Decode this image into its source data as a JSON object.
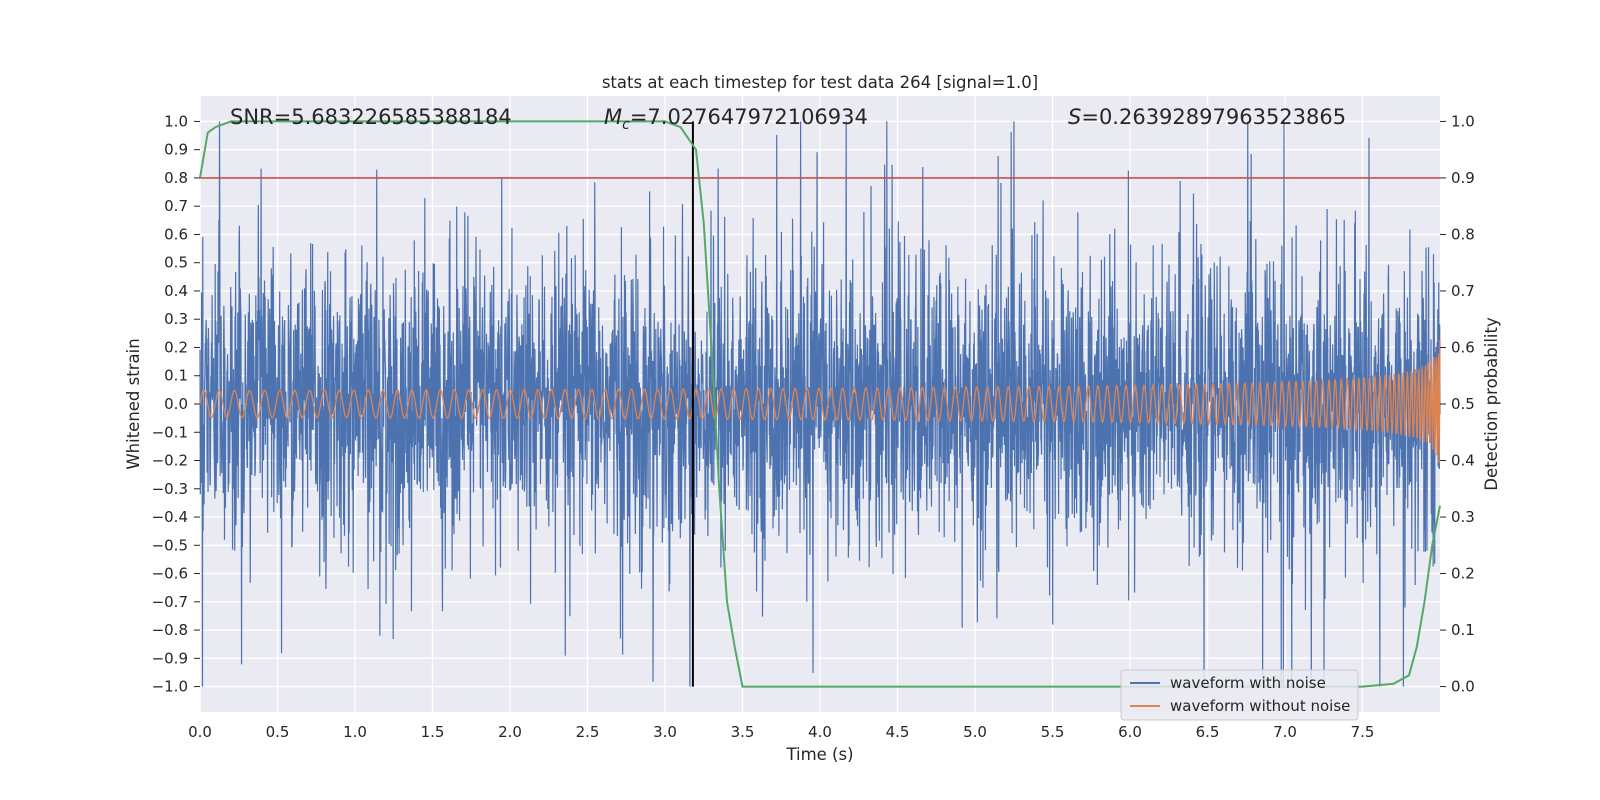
{
  "chart_data": {
    "type": "line",
    "title": "stats at each timestep for test data 264 [signal=1.0]",
    "xlabel": "Time (s)",
    "ylabel_left": "Whitened strain",
    "ylabel_right": "Detection probability",
    "xlim": [
      0.0,
      8.0
    ],
    "ylim_left": [
      -1.09,
      1.09
    ],
    "ylim_right": [
      -0.045,
      1.045
    ],
    "x_ticks": [
      "0.0",
      "0.5",
      "1.0",
      "1.5",
      "2.0",
      "2.5",
      "3.0",
      "3.5",
      "4.0",
      "4.5",
      "5.0",
      "5.5",
      "6.0",
      "6.5",
      "7.0",
      "7.5"
    ],
    "y_left_ticks": [
      "1.0",
      "0.9",
      "0.8",
      "0.7",
      "0.6",
      "0.5",
      "0.4",
      "0.3",
      "0.2",
      "0.1",
      "0.0",
      "−0.1",
      "−0.2",
      "−0.3",
      "−0.4",
      "−0.5",
      "−0.6",
      "−0.7",
      "−0.8",
      "−0.9",
      "−1.0"
    ],
    "y_right_ticks": [
      "1.0",
      "0.9",
      "0.8",
      "0.7",
      "0.6",
      "0.5",
      "0.4",
      "0.3",
      "0.2",
      "0.1",
      "0.0"
    ],
    "grid": true,
    "legend_position": "lower-right",
    "annotations": {
      "snr": "SNR=5.683226585388184",
      "mc_symbol": "M",
      "mc_sub": "c",
      "mc_value": "=7.027647972106934",
      "s_symbol": "S",
      "s_value": "=0.26392897963523865"
    },
    "series": [
      {
        "name": "waveform with noise",
        "color": "#4c72b0",
        "axis": "left",
        "kind": "noise",
        "amplitude_range": [
          -1.0,
          1.0
        ]
      },
      {
        "name": "waveform without noise",
        "color": "#dd8452",
        "axis": "left",
        "kind": "chirp",
        "end_amplitude": 0.24
      },
      {
        "name": "detection probability",
        "color": "#55a868",
        "axis": "right",
        "x": [
          0.0,
          0.05,
          0.1,
          0.2,
          0.5,
          1.0,
          2.0,
          2.5,
          3.0,
          3.1,
          3.15,
          3.2,
          3.25,
          3.3,
          3.35,
          3.4,
          3.45,
          3.5,
          4.0,
          4.5,
          5.0,
          5.5,
          6.0,
          6.5,
          7.0,
          7.5,
          7.7,
          7.8,
          7.85,
          7.9,
          7.95,
          8.0
        ],
        "y": [
          0.9,
          0.98,
          0.99,
          1.0,
          1.0,
          1.0,
          1.0,
          1.0,
          1.0,
          0.99,
          0.97,
          0.95,
          0.82,
          0.6,
          0.35,
          0.15,
          0.07,
          0.0,
          0.0,
          0.0,
          0.0,
          0.0,
          0.0,
          0.0,
          0.0,
          0.0,
          0.005,
          0.02,
          0.07,
          0.15,
          0.25,
          0.32
        ]
      }
    ],
    "threshold": {
      "value": 0.9,
      "axis": "right",
      "color": "#c44e52"
    },
    "vline": {
      "x": 3.18,
      "color": "#000000"
    }
  }
}
